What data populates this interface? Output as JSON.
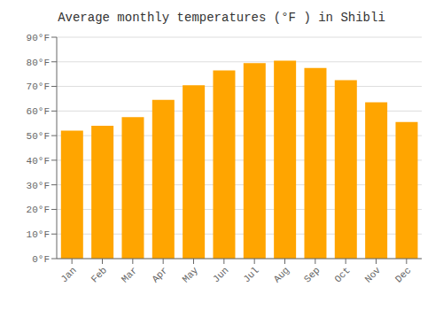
{
  "chart_data": {
    "type": "bar",
    "title": "Average monthly temperatures (°F ) in Shibli",
    "categories": [
      "Jan",
      "Feb",
      "Mar",
      "Apr",
      "May",
      "Jun",
      "Jul",
      "Aug",
      "Sep",
      "Oct",
      "Nov",
      "Dec"
    ],
    "values": [
      52,
      54,
      57.5,
      64.5,
      70.5,
      76.5,
      79.5,
      80.5,
      77.5,
      72.5,
      63.5,
      55.5
    ],
    "color": "#FFA500",
    "ylim": [
      0,
      90
    ],
    "yticks": [
      {
        "value": 0,
        "label": "0°F"
      },
      {
        "value": 10,
        "label": "10°F"
      },
      {
        "value": 20,
        "label": "20°F"
      },
      {
        "value": 30,
        "label": "30°F"
      },
      {
        "value": 40,
        "label": "40°F"
      },
      {
        "value": 50,
        "label": "50°F"
      },
      {
        "value": 60,
        "label": "60°F"
      },
      {
        "value": 70,
        "label": "70°F"
      },
      {
        "value": 80,
        "label": "80°F"
      },
      {
        "value": 90,
        "label": "90°F"
      }
    ],
    "grid": true
  }
}
